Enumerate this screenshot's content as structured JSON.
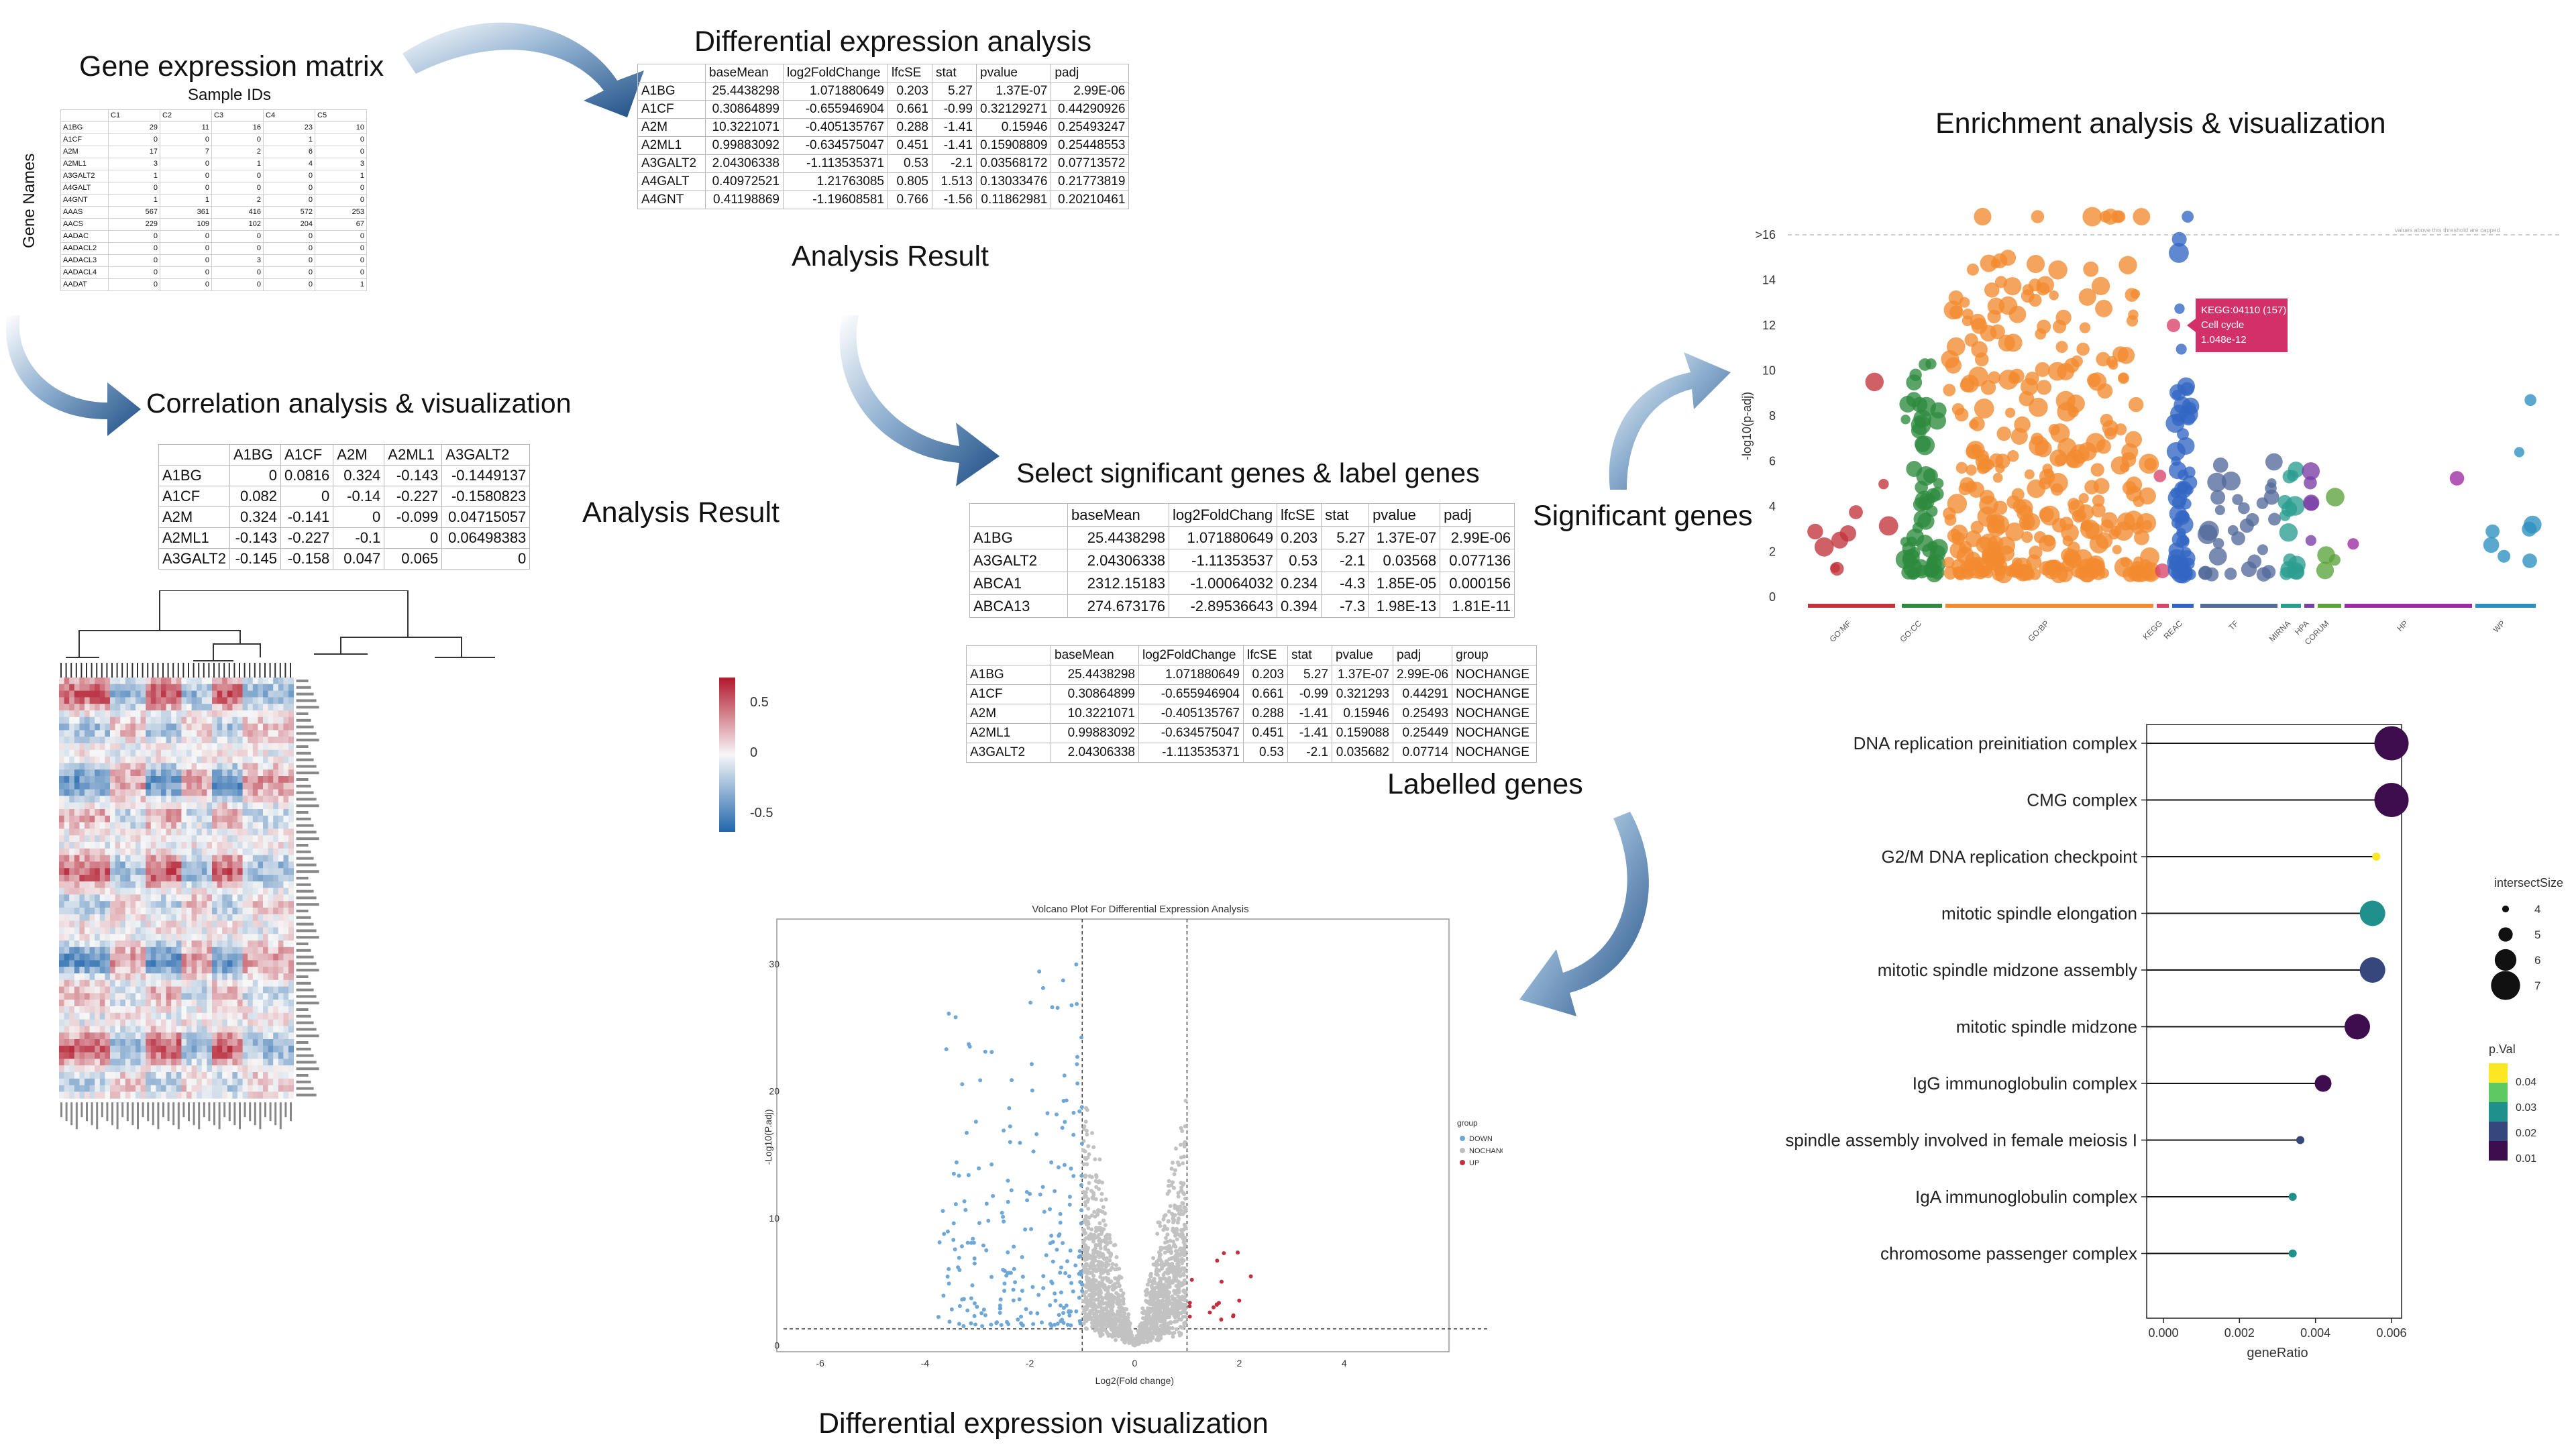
{
  "titles": {
    "gene_matrix": "Gene expression matrix",
    "sample_ids": "Sample IDs",
    "gene_names": "Gene Names",
    "dea": "Differential expression analysis",
    "analysis_result_top": "Analysis Result",
    "correlation": "Correlation analysis & visualization",
    "analysis_result_left": "Analysis Result",
    "select_sig": "Select significant genes & label genes",
    "labelled_genes": "Labelled genes",
    "significant_genes": "Significant genes",
    "enrichment": "Enrichment analysis & visualization",
    "de_vis": "Differential expression visualization"
  },
  "matrix": {
    "headers": [
      "",
      "C1",
      "C2",
      "C3",
      "C4",
      "C5"
    ],
    "rows": [
      [
        "A1BG",
        "29",
        "11",
        "16",
        "23",
        "10"
      ],
      [
        "A1CF",
        "0",
        "0",
        "0",
        "1",
        "0"
      ],
      [
        "A2M",
        "17",
        "7",
        "2",
        "6",
        "0"
      ],
      [
        "A2ML1",
        "3",
        "0",
        "1",
        "4",
        "3"
      ],
      [
        "A3GALT2",
        "1",
        "0",
        "0",
        "0",
        "1"
      ],
      [
        "A4GALT",
        "0",
        "0",
        "0",
        "0",
        "0"
      ],
      [
        "A4GNT",
        "1",
        "1",
        "2",
        "0",
        "0"
      ],
      [
        "AAAS",
        "567",
        "361",
        "416",
        "572",
        "253"
      ],
      [
        "AACS",
        "229",
        "109",
        "102",
        "204",
        "67"
      ],
      [
        "AADAC",
        "0",
        "0",
        "0",
        "0",
        "0"
      ],
      [
        "AADACL2",
        "0",
        "0",
        "0",
        "0",
        "0"
      ],
      [
        "AADACL3",
        "0",
        "0",
        "3",
        "0",
        "0"
      ],
      [
        "AADACL4",
        "0",
        "0",
        "0",
        "0",
        "0"
      ],
      [
        "AADAT",
        "0",
        "0",
        "0",
        "0",
        "1"
      ]
    ]
  },
  "dea_table": {
    "headers": [
      "",
      "baseMean",
      "log2FoldChange",
      "lfcSE",
      "stat",
      "pvalue",
      "padj"
    ],
    "rows": [
      [
        "A1BG",
        "25.4438298",
        "1.071880649",
        "0.203",
        "5.27",
        "1.37E-07",
        "2.99E-06"
      ],
      [
        "A1CF",
        "0.30864899",
        "-0.655946904",
        "0.661",
        "-0.99",
        "0.32129271",
        "0.44290926"
      ],
      [
        "A2M",
        "10.3221071",
        "-0.405135767",
        "0.288",
        "-1.41",
        "0.15946",
        "0.25493247"
      ],
      [
        "A2ML1",
        "0.99883092",
        "-0.634575047",
        "0.451",
        "-1.41",
        "0.15908809",
        "0.25448553"
      ],
      [
        "A3GALT2",
        "2.04306338",
        "-1.113535371",
        "0.53",
        "-2.1",
        "0.03568172",
        "0.07713572"
      ],
      [
        "A4GALT",
        "0.40972521",
        "1.21763085",
        "0.805",
        "1.513",
        "0.13033476",
        "0.21773819"
      ],
      [
        "A4GNT",
        "0.41198869",
        "-1.19608581",
        "0.766",
        "-1.56",
        "0.11862981",
        "0.20210461"
      ]
    ]
  },
  "corr_table": {
    "headers": [
      "",
      "A1BG",
      "A1CF",
      "A2M",
      "A2ML1",
      "A3GALT2"
    ],
    "rows": [
      [
        "A1BG",
        "0",
        "0.0816",
        "0.324",
        "-0.143",
        "-0.1449137"
      ],
      [
        "A1CF",
        "0.082",
        "0",
        "-0.14",
        "-0.227",
        "-0.1580823"
      ],
      [
        "A2M",
        "0.324",
        "-0.141",
        "0",
        "-0.099",
        "0.04715057"
      ],
      [
        "A2ML1",
        "-0.143",
        "-0.227",
        "-0.1",
        "0",
        "0.06498383"
      ],
      [
        "A3GALT2",
        "-0.145",
        "-0.158",
        "0.047",
        "0.065",
        "0"
      ]
    ]
  },
  "sig_table": {
    "headers": [
      "",
      "baseMean",
      "log2FoldChang",
      "lfcSE",
      "stat",
      "pvalue",
      "padj"
    ],
    "rows": [
      [
        "A1BG",
        "25.4438298",
        "1.071880649",
        "0.203",
        "5.27",
        "1.37E-07",
        "2.99E-06"
      ],
      [
        "A3GALT2",
        "2.04306338",
        "-1.11353537",
        "0.53",
        "-2.1",
        "0.03568",
        "0.077136"
      ],
      [
        "ABCA1",
        "2312.15183",
        "-1.00064032",
        "0.234",
        "-4.3",
        "1.85E-05",
        "0.000156"
      ],
      [
        "ABCA13",
        "274.673176",
        "-2.89536643",
        "0.394",
        "-7.3",
        "1.98E-13",
        "1.81E-11"
      ]
    ]
  },
  "label_table": {
    "headers": [
      "",
      "baseMean",
      "log2FoldChange",
      "lfcSE",
      "stat",
      "pvalue",
      "padj",
      "group"
    ],
    "rows": [
      [
        "A1BG",
        "25.4438298",
        "1.071880649",
        "0.203",
        "5.27",
        "1.37E-07",
        "2.99E-06",
        "NOCHANGE"
      ],
      [
        "A1CF",
        "0.30864899",
        "-0.655946904",
        "0.661",
        "-0.99",
        "0.321293",
        "0.44291",
        "NOCHANGE"
      ],
      [
        "A2M",
        "10.3221071",
        "-0.405135767",
        "0.288",
        "-1.41",
        "0.15946",
        "0.25493",
        "NOCHANGE"
      ],
      [
        "A2ML1",
        "0.99883092",
        "-0.634575047",
        "0.451",
        "-1.41",
        "0.159088",
        "0.25449",
        "NOCHANGE"
      ],
      [
        "A3GALT2",
        "2.04306338",
        "-1.113535371",
        "0.53",
        "-2.1",
        "0.035682",
        "0.07714",
        "NOCHANGE"
      ]
    ]
  },
  "heatmap": {
    "legend_ticks": [
      "0.5",
      "0",
      "-0.5"
    ],
    "colors": {
      "high": "#b2182b",
      "mid": "#f7f7f7",
      "low": "#2166ac"
    }
  },
  "volcano": {
    "title": "Volcano Plot For Differential Expression Analysis",
    "xlabel": "Log2(Fold change)",
    "ylabel": "-Log10(P.adj)",
    "x_ticks": [
      "-6",
      "-4",
      "-2",
      "0",
      "2",
      "4"
    ],
    "y_ticks": [
      "0",
      "10",
      "20",
      "30"
    ],
    "legend_title": "group",
    "legend_items": [
      {
        "label": "DOWN",
        "color": "#6fa8d6"
      },
      {
        "label": "NOCHANGE",
        "color": "#bdbdbd"
      },
      {
        "label": "UP",
        "color": "#c0303f"
      }
    ]
  },
  "manhattan": {
    "ylabel": "-log10(p-adj)",
    "y_ticks": [
      "0",
      "2",
      "4",
      "6",
      "8",
      "10",
      "12",
      "14",
      ">16"
    ],
    "threshold_note": "values above this threshold are capped",
    "sources": [
      "GO:MF",
      "GO:CC",
      "GO:BP",
      "KEGG",
      "REAC",
      "TF",
      "MIRNA",
      "HPA",
      "CORUM",
      "HP",
      "WP"
    ],
    "tooltip": {
      "line1": "KEGG:04110 (157)",
      "line2": "Cell cycle",
      "line3": "1.048e-12"
    }
  },
  "chart_data": {
    "type": "scatter",
    "title": "",
    "xlabel": "geneRatio",
    "ylabel": "",
    "x_ticks": [
      "0.000",
      "0.002",
      "0.004",
      "0.006"
    ],
    "xlim": [
      0,
      0.006
    ],
    "categories": [
      "DNA replication preinitiation complex",
      "CMG complex",
      "G2/M DNA replication checkpoint",
      "mitotic spindle elongation",
      "mitotic spindle midzone assembly",
      "mitotic spindle midzone",
      "IgG immunoglobulin complex",
      "spindle assembly involved in female meiosis I",
      "IgA immunoglobulin complex",
      "chromosome passenger complex"
    ],
    "geneRatio": [
      0.006,
      0.006,
      0.0056,
      0.0055,
      0.0055,
      0.0051,
      0.0042,
      0.0036,
      0.0034,
      0.0034
    ],
    "intersectSize": [
      7,
      7,
      4,
      6,
      6,
      6,
      5,
      4,
      4,
      4
    ],
    "pval": [
      0.005,
      0.004,
      0.043,
      0.028,
      0.012,
      0.01,
      0.005,
      0.015,
      0.03,
      0.03
    ],
    "size_legend_title": "intersectSize",
    "size_legend": [
      "4",
      "5",
      "6",
      "7"
    ],
    "color_legend_title": "p.Val",
    "color_legend": [
      "0.04",
      "0.03",
      "0.02",
      "0.01"
    ]
  }
}
